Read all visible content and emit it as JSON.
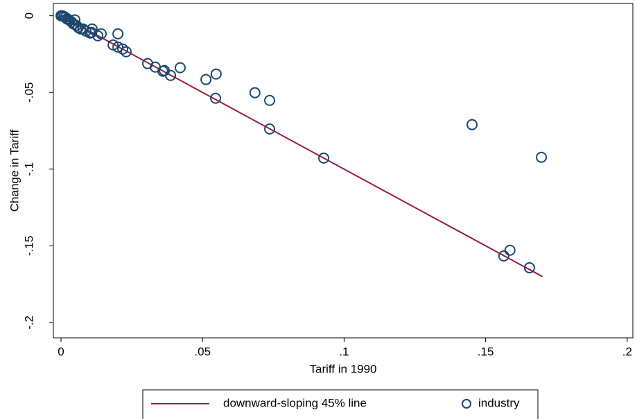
{
  "chart_data": {
    "type": "scatter",
    "x_label": "Tariff in 1990",
    "y_label": "Change in Tariff",
    "xlim": [
      -0.0027,
      0.202
    ],
    "ylim": [
      -0.21,
      0.008
    ],
    "xticks": [
      0,
      {
        "value": 0.05,
        "label": ".05"
      },
      {
        "value": 0.1,
        "label": ".1"
      },
      {
        "value": 0.15,
        "label": ".15"
      },
      {
        "value": 0.2,
        "label": ".2"
      }
    ],
    "yticks": [
      0,
      {
        "value": -0.05,
        "label": "-.05"
      },
      {
        "value": -0.1,
        "label": "-.1"
      },
      {
        "value": -0.15,
        "label": "-.15"
      },
      {
        "value": -0.2,
        "label": "-.2"
      }
    ],
    "grid": false,
    "legend": "bottom",
    "series": [
      {
        "name": "downward-sloping 45% line",
        "mode": "line",
        "color": "#9b1b3a",
        "x": [
          0,
          0.17
        ],
        "y": [
          0,
          -0.17
        ]
      },
      {
        "name": "industry",
        "mode": "markers",
        "color": "#1a476f",
        "x": [
          0,
          0.0005,
          0.001,
          0.0015,
          0.002,
          0.0025,
          0.003,
          0.0037,
          0.0044,
          0.0049,
          0.0054,
          0.0061,
          0.0069,
          0.0078,
          0.0088,
          0.0103,
          0.011,
          0.0108,
          0.013,
          0.0142,
          0.0184,
          0.0201,
          0.0201,
          0.0218,
          0.023,
          0.0306,
          0.0333,
          0.036,
          0.0365,
          0.0387,
          0.0421,
          0.0512,
          0.0548,
          0.0546,
          0.0685,
          0.0737,
          0.0737,
          0.0928,
          0.1452,
          0.1564,
          0.1586,
          0.1655,
          0.1697
        ],
        "y": [
          0,
          0,
          -0.0005,
          -0.001,
          -0.002,
          -0.0023,
          -0.003,
          -0.004,
          -0.0054,
          -0.0027,
          -0.0063,
          -0.0077,
          -0.0086,
          -0.0086,
          -0.01,
          -0.0113,
          -0.0086,
          -0.0109,
          -0.0131,
          -0.0118,
          -0.019,
          -0.0204,
          -0.0118,
          -0.0217,
          -0.0235,
          -0.0312,
          -0.0335,
          -0.0362,
          -0.0357,
          -0.0389,
          -0.0339,
          -0.0416,
          -0.038,
          -0.0538,
          -0.0502,
          -0.0552,
          -0.0738,
          -0.0928,
          -0.071,
          -0.1566,
          -0.1529,
          -0.1643,
          -0.0923
        ]
      }
    ]
  }
}
